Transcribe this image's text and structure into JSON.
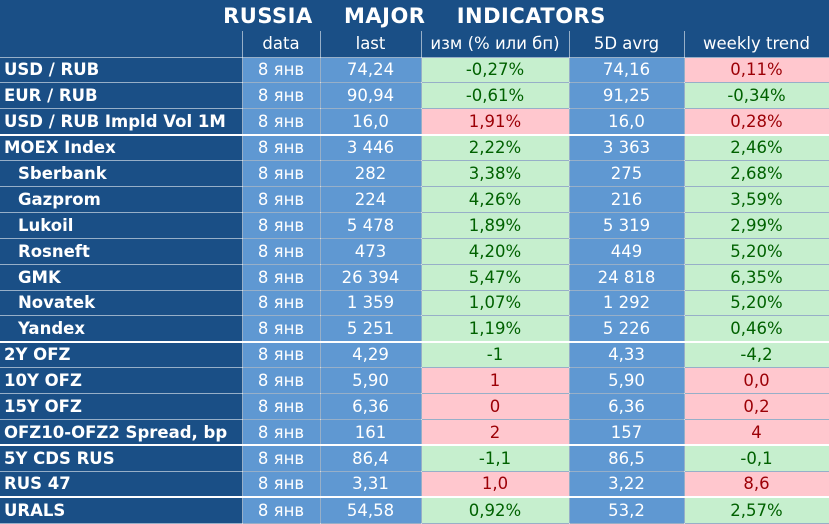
{
  "title": "RUSSIA    MAJOR    INDICATORS",
  "headers": [
    "",
    "data",
    "last",
    "изм (% или бп)",
    "5D avrg",
    "weekly trend"
  ],
  "rows": [
    {
      "name": "USD / RUB",
      "date": "8 янв",
      "last": "74,24",
      "change": "-0,27%",
      "change_status": "positive",
      "avg5d": "74,16",
      "weekly": "0,11%",
      "weekly_status": "negative",
      "indent": false
    },
    {
      "name": "EUR / RUB",
      "date": "8 янв",
      "last": "90,94",
      "change": "-0,61%",
      "change_status": "positive",
      "avg5d": "91,25",
      "weekly": "-0,34%",
      "weekly_status": "positive",
      "indent": false
    },
    {
      "name": "USD / RUB Impld Vol 1M",
      "date": "8 янв",
      "last": "16,0",
      "change": "1,91%",
      "change_status": "negative",
      "avg5d": "16,0",
      "weekly": "0,28%",
      "weekly_status": "negative",
      "indent": false
    },
    {
      "name": "MOEX Index",
      "date": "8 янв",
      "last": "3 446",
      "change": "2,22%",
      "change_status": "positive",
      "avg5d": "3 363",
      "weekly": "2,46%",
      "weekly_status": "positive",
      "indent": false
    },
    {
      "name": "Sberbank",
      "date": "8 янв",
      "last": "282",
      "change": "3,38%",
      "change_status": "positive",
      "avg5d": "275",
      "weekly": "2,68%",
      "weekly_status": "positive",
      "indent": true
    },
    {
      "name": "Gazprom",
      "date": "8 янв",
      "last": "224",
      "change": "4,26%",
      "change_status": "positive",
      "avg5d": "216",
      "weekly": "3,59%",
      "weekly_status": "positive",
      "indent": true
    },
    {
      "name": "Lukoil",
      "date": "8 янв",
      "last": "5 478",
      "change": "1,89%",
      "change_status": "positive",
      "avg5d": "5 319",
      "weekly": "2,99%",
      "weekly_status": "positive",
      "indent": true
    },
    {
      "name": "Rosneft",
      "date": "8 янв",
      "last": "473",
      "change": "4,20%",
      "change_status": "positive",
      "avg5d": "449",
      "weekly": "5,20%",
      "weekly_status": "positive",
      "indent": true
    },
    {
      "name": "GMK",
      "date": "8 янв",
      "last": "26 394",
      "change": "5,47%",
      "change_status": "positive",
      "avg5d": "24 818",
      "weekly": "6,35%",
      "weekly_status": "positive",
      "indent": true
    },
    {
      "name": "Novatek",
      "date": "8 янв",
      "last": "1 359",
      "change": "1,07%",
      "change_status": "positive",
      "avg5d": "1 292",
      "weekly": "5,20%",
      "weekly_status": "positive",
      "indent": true
    },
    {
      "name": "Yandex",
      "date": "8 янв",
      "last": "5 251",
      "change": "1,19%",
      "change_status": "positive",
      "avg5d": "5 226",
      "weekly": "0,46%",
      "weekly_status": "positive",
      "indent": true
    },
    {
      "name": "2Y OFZ",
      "date": "8 янв",
      "last": "4,29",
      "change": "-1",
      "change_status": "positive",
      "avg5d": "4,33",
      "weekly": "-4,2",
      "weekly_status": "positive",
      "indent": false
    },
    {
      "name": "10Y OFZ",
      "date": "8 янв",
      "last": "5,90",
      "change": "1",
      "change_status": "negative",
      "avg5d": "5,90",
      "weekly": "0,0",
      "weekly_status": "negative",
      "indent": false
    },
    {
      "name": "15Y OFZ",
      "date": "8 янв",
      "last": "6,36",
      "change": "0",
      "change_status": "negative",
      "avg5d": "6,36",
      "weekly": "0,2",
      "weekly_status": "negative",
      "indent": false
    },
    {
      "name": "OFZ10-OFZ2 Spread, bp",
      "date": "8 янв",
      "last": "161",
      "change": "2",
      "change_status": "negative",
      "avg5d": "157",
      "weekly": "4",
      "weekly_status": "negative",
      "indent": false
    },
    {
      "name": "5Y CDS RUS",
      "date": "8 янв",
      "last": "86,4",
      "change": "-1,1",
      "change_status": "positive",
      "avg5d": "86,5",
      "weekly": "-0,1",
      "weekly_status": "positive",
      "indent": false
    },
    {
      "name": "RUS 47",
      "date": "8 янв",
      "last": "3,31",
      "change": "1,0",
      "change_status": "negative",
      "avg5d": "3,22",
      "weekly": "8,6",
      "weekly_status": "negative",
      "indent": false
    },
    {
      "name": "URALS",
      "date": "8 янв",
      "last": "54,58",
      "change": "0,92%",
      "change_status": "positive",
      "avg5d": "53,2",
      "weekly": "2,57%",
      "weekly_status": "positive",
      "indent": false
    }
  ],
  "group_starts": [
    3,
    11,
    15,
    17
  ],
  "colors": {
    "background": "#1a4f86",
    "cell_blue": "#5f98d2",
    "positive_bg": "#c6efce",
    "positive_text": "#006100",
    "negative_bg": "#ffc7ce",
    "negative_text": "#9c0006"
  }
}
